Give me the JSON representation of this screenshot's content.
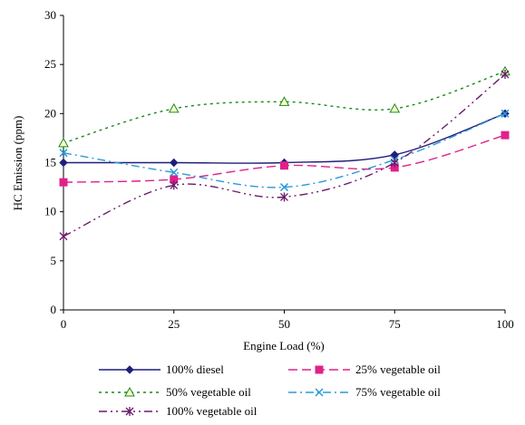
{
  "chart_data": {
    "type": "line",
    "x": [
      0,
      25,
      50,
      75,
      100
    ],
    "xlabel": "Engine Load (%)",
    "ylabel": "HC Emission (ppm)",
    "xlim": [
      0,
      100
    ],
    "ylim": [
      0,
      30
    ],
    "x_ticks": [
      "0",
      "25",
      "50",
      "75",
      "100"
    ],
    "y_ticks": [
      "0",
      "5",
      "10",
      "15",
      "20",
      "25",
      "30"
    ],
    "grid": false,
    "legend_position": "bottom",
    "series": [
      {
        "name": "100% diesel",
        "values": [
          15,
          15,
          15,
          15.8,
          20
        ],
        "color": "#1f1f7a",
        "marker": "diamond",
        "dash": "solid"
      },
      {
        "name": "25% vegetable oil",
        "values": [
          13,
          13.3,
          14.7,
          14.5,
          17.8
        ],
        "color": "#e0218a",
        "marker": "square",
        "dash": "dashed"
      },
      {
        "name": "50% vegetable oil",
        "values": [
          17,
          20.5,
          21.2,
          20.5,
          24.3
        ],
        "color": "#1a8a1a",
        "marker": "triangle",
        "dash": "dotted"
      },
      {
        "name": "75% vegetable oil",
        "values": [
          16,
          14,
          12.5,
          15.3,
          20
        ],
        "color": "#2a9ad8",
        "marker": "x",
        "dash": "dashdot"
      },
      {
        "name": "100% vegetable oil",
        "values": [
          7.5,
          12.7,
          11.5,
          15,
          24
        ],
        "color": "#6a1a6a",
        "marker": "star",
        "dash": "dashdotdot"
      }
    ]
  }
}
